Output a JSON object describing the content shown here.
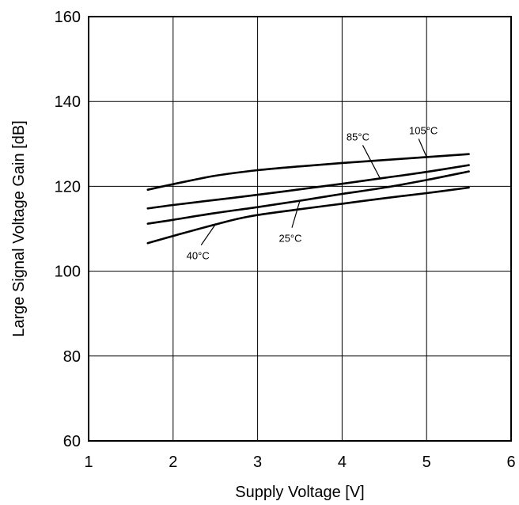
{
  "chart_data": {
    "type": "line",
    "xlabel": "Supply Voltage [V]",
    "ylabel": "Large Signal Voltage Gain [dB]",
    "xlim": [
      1,
      6
    ],
    "ylim": [
      60,
      160
    ],
    "xticks": [
      1,
      2,
      3,
      4,
      5,
      6
    ],
    "yticks": [
      60,
      80,
      100,
      120,
      140,
      160
    ],
    "grid": true,
    "series": [
      {
        "name": "105°C",
        "x": [
          1.7,
          2.0,
          2.5,
          3.0,
          3.5,
          4.0,
          4.5,
          5.0,
          5.5
        ],
        "values": [
          119.2,
          120.5,
          122.5,
          123.8,
          124.7,
          125.5,
          126.2,
          126.9,
          127.6
        ]
      },
      {
        "name": "85°C",
        "x": [
          1.7,
          2.0,
          2.5,
          3.0,
          3.5,
          4.0,
          4.5,
          5.0,
          5.5
        ],
        "values": [
          114.8,
          115.6,
          116.8,
          118.0,
          119.3,
          120.6,
          122.0,
          123.4,
          125.0
        ]
      },
      {
        "name": "25°C",
        "x": [
          1.7,
          2.0,
          2.5,
          3.0,
          3.5,
          4.0,
          4.5,
          5.0,
          5.5
        ],
        "values": [
          111.2,
          112.1,
          113.7,
          115.1,
          116.6,
          118.2,
          119.7,
          121.5,
          123.5
        ]
      },
      {
        "name": "40°C",
        "x": [
          1.7,
          2.0,
          2.5,
          2.9,
          3.5,
          4.0,
          4.5,
          5.0,
          5.5
        ],
        "values": [
          106.6,
          108.3,
          111.0,
          112.9,
          114.6,
          115.9,
          117.2,
          118.4,
          119.7
        ]
      }
    ],
    "annotations": [
      {
        "text": "105°C",
        "series": "105°C",
        "at_x": 5.0
      },
      {
        "text": "85°C",
        "series": "85°C",
        "at_x": 4.45
      },
      {
        "text": "25°C",
        "series": "25°C",
        "at_x": 3.5
      },
      {
        "text": "40°C",
        "series": "40°C",
        "at_x": 2.5
      }
    ]
  }
}
